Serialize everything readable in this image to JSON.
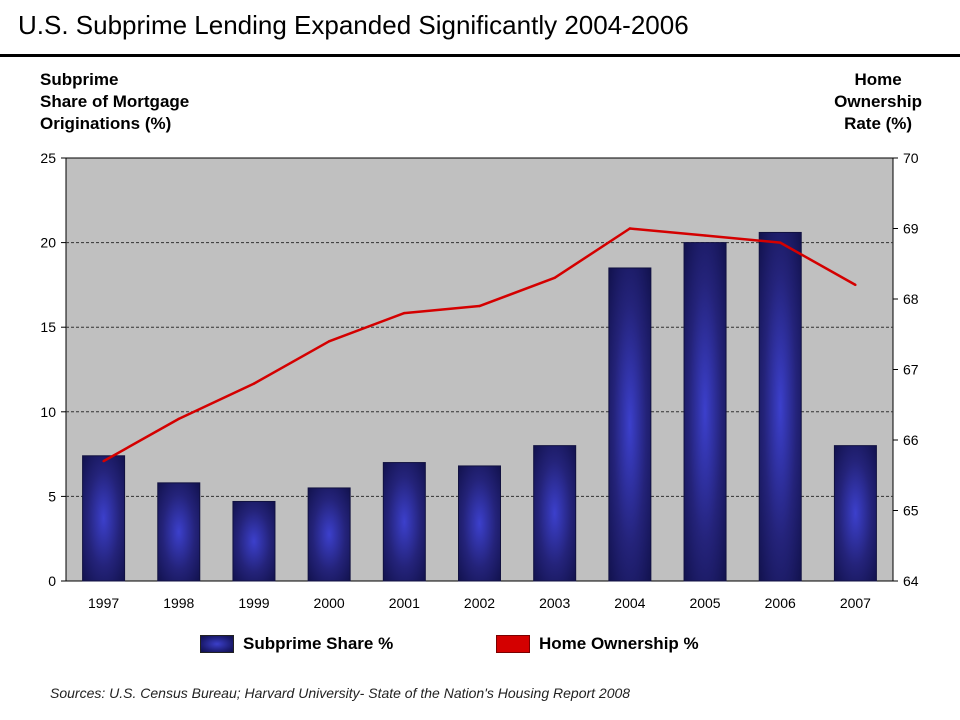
{
  "title": "U.S. Subprime Lending Expanded Significantly 2004-2006",
  "left_axis_title": [
    "Subprime",
    "Share of Mortgage",
    "Originations (%)"
  ],
  "right_axis_title": [
    "Home",
    "Ownership",
    "Rate (%)"
  ],
  "source": "Sources:  U.S. Census Bureau; Harvard University- State of the Nation's Housing Report 2008",
  "colors": {
    "bar": "#24237a",
    "line": "#d40000",
    "plot_bg": "#c0c0c0"
  },
  "chart_data": {
    "type": "bar",
    "categories": [
      "1997",
      "1998",
      "1999",
      "2000",
      "2001",
      "2002",
      "2003",
      "2004",
      "2005",
      "2006",
      "2007"
    ],
    "series": [
      {
        "name": "Subprime Share %",
        "type": "bar",
        "axis": "left",
        "values": [
          7.4,
          5.8,
          4.7,
          5.5,
          7.0,
          6.8,
          8.0,
          18.5,
          20.0,
          20.6,
          8.0
        ]
      },
      {
        "name": "Home Ownership %",
        "type": "line",
        "axis": "right",
        "values": [
          65.7,
          66.3,
          66.8,
          67.4,
          67.8,
          67.9,
          68.3,
          69.0,
          68.9,
          68.8,
          68.2
        ]
      }
    ],
    "y_left": {
      "range": [
        0,
        25
      ],
      "ticks": [
        "0",
        "5",
        "10",
        "15",
        "20",
        "25"
      ]
    },
    "y_right": {
      "range": [
        64,
        70
      ],
      "ticks": [
        "64",
        "65",
        "66",
        "67",
        "68",
        "69",
        "70"
      ]
    },
    "grid": "dashed horizontal",
    "legend_position": "bottom"
  }
}
